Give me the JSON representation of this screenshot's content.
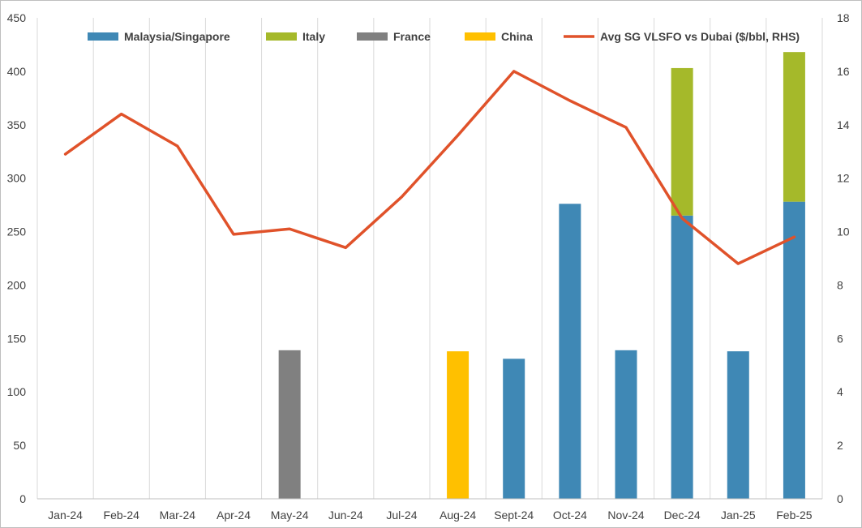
{
  "chart_data": {
    "type": "bar",
    "stacked": true,
    "categories": [
      "Jan-24",
      "Feb-24",
      "Mar-24",
      "Apr-24",
      "May-24",
      "Jun-24",
      "Jul-24",
      "Aug-24",
      "Sept-24",
      "Oct-24",
      "Nov-24",
      "Dec-24",
      "Jan-25",
      "Feb-25"
    ],
    "series": [
      {
        "name": "Malaysia/Singapore",
        "type": "bar",
        "color": "#3f88b5",
        "values": [
          0,
          0,
          0,
          0,
          0,
          0,
          0,
          0,
          131,
          276,
          139,
          265,
          138,
          278
        ]
      },
      {
        "name": "Italy",
        "type": "bar",
        "color": "#a5b92a",
        "values": [
          0,
          0,
          0,
          0,
          0,
          0,
          0,
          0,
          0,
          0,
          0,
          138,
          0,
          140
        ]
      },
      {
        "name": "France",
        "type": "bar",
        "color": "#808080",
        "values": [
          0,
          0,
          0,
          0,
          139,
          0,
          0,
          0,
          0,
          0,
          0,
          0,
          0,
          0
        ]
      },
      {
        "name": "China",
        "type": "bar",
        "color": "#ffc000",
        "values": [
          0,
          0,
          0,
          0,
          0,
          0,
          0,
          138,
          0,
          0,
          0,
          0,
          0,
          0
        ]
      },
      {
        "name": "Avg SG VLSFO vs Dubai ($/bbl, RHS)",
        "type": "line",
        "axis": "right",
        "color": "#e0522a",
        "values": [
          12.9,
          14.4,
          13.2,
          9.9,
          10.1,
          9.4,
          11.3,
          13.6,
          16.0,
          14.9,
          13.9,
          10.5,
          8.8,
          9.8
        ]
      }
    ],
    "ylim": [
      0,
      450
    ],
    "yticks": [
      0,
      50,
      100,
      150,
      200,
      250,
      300,
      350,
      400,
      450
    ],
    "y2lim": [
      0,
      18
    ],
    "y2ticks": [
      0,
      2,
      4,
      6,
      8,
      10,
      12,
      14,
      16,
      18
    ],
    "grid": "vertical",
    "legend_position": "top"
  }
}
